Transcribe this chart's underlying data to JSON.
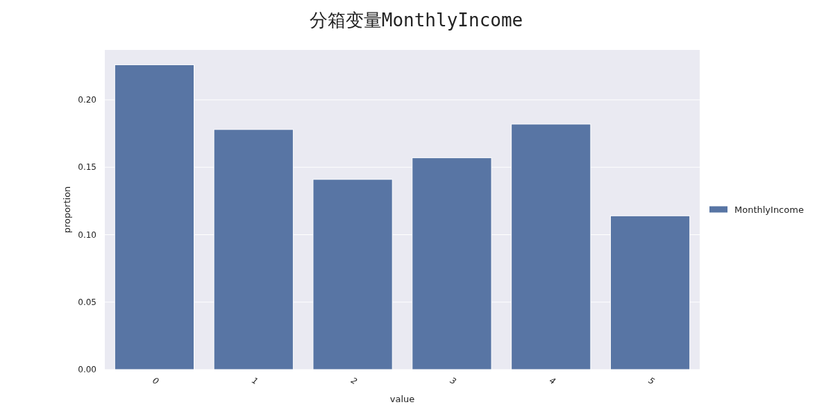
{
  "chart_data": {
    "type": "bar",
    "title": "分箱变量MonthlyIncome",
    "xlabel": "value",
    "ylabel": "proportion",
    "categories": [
      "0",
      "1",
      "2",
      "3",
      "4",
      "5"
    ],
    "series": [
      {
        "name": "MonthlyIncome",
        "color": "#5875a4",
        "values": [
          0.226,
          0.178,
          0.141,
          0.157,
          0.182,
          0.114
        ]
      }
    ],
    "ylim": [
      0,
      0.237
    ],
    "yticks": [
      {
        "value": 0,
        "label": "0.00"
      },
      {
        "value": 0.05,
        "label": "0.05"
      },
      {
        "value": 0.1,
        "label": "0.10"
      },
      {
        "value": 0.15,
        "label": "0.15"
      },
      {
        "value": 0.2,
        "label": "0.20"
      }
    ],
    "grid": "y",
    "legend": "right"
  }
}
